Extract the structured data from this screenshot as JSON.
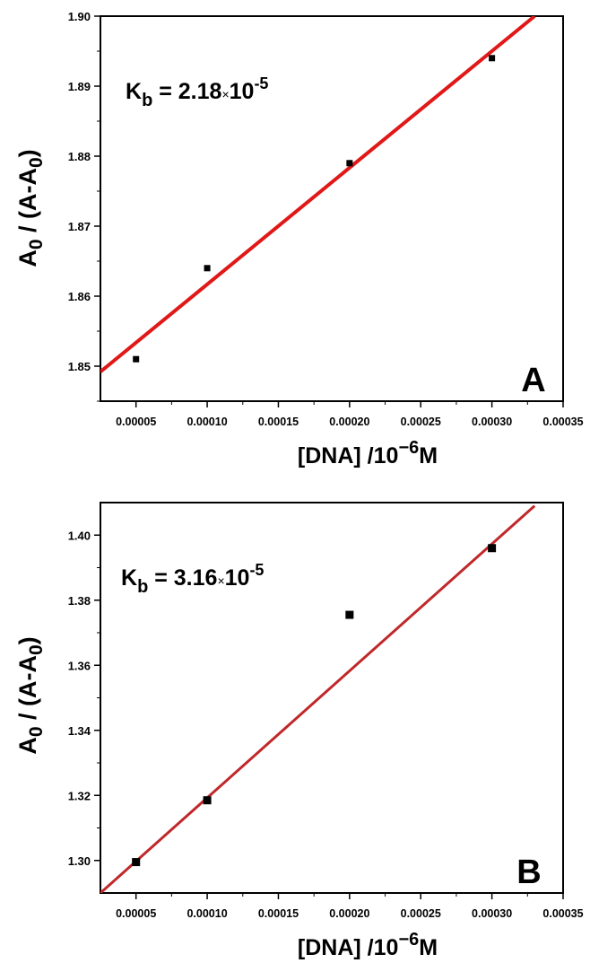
{
  "chart_data": [
    {
      "type": "scatter",
      "panel_label": "A",
      "xlabel": {
        "main": "[DNA] /10",
        "sup": "−6",
        "unit": "M"
      },
      "ylabel": {
        "a": "A",
        "a_sub": "0",
        "mid": " / (A-A",
        "mid_sub": "0",
        "end": ")"
      },
      "annotation": {
        "k": "K",
        "k_sub": "b",
        "eq": " = 2.18",
        "times": "×",
        "base": "10",
        "exp": "-5"
      },
      "xlim": [
        2.5e-05,
        0.00035
      ],
      "ylim": [
        1.845,
        1.9
      ],
      "x_ticks": [
        5e-05,
        0.0001,
        0.00015,
        0.0002,
        0.00025,
        0.0003,
        0.00035
      ],
      "x_tick_labels": [
        "0.00005",
        "0.00010",
        "0.00015",
        "0.00020",
        "0.00025",
        "0.00030",
        "0.00035"
      ],
      "y_ticks": [
        1.85,
        1.86,
        1.87,
        1.88,
        1.89,
        1.9
      ],
      "y_tick_labels": [
        "1.85",
        "1.86",
        "1.87",
        "1.88",
        "1.89",
        "1.90"
      ],
      "series": [
        {
          "points": [
            {
              "x": 5e-05,
              "y": 1.851
            },
            {
              "x": 0.0001,
              "y": 1.864
            },
            {
              "x": 0.0002,
              "y": 1.879
            },
            {
              "x": 0.0003,
              "y": 1.894
            }
          ]
        }
      ],
      "fit_line": {
        "from": {
          "x": 2.5e-05,
          "y": 1.8492
        },
        "to": {
          "x": 0.00033,
          "y": 1.9
        }
      },
      "colors": {
        "fit": "#e01818",
        "points": "#000000"
      }
    },
    {
      "type": "scatter",
      "panel_label": "B",
      "xlabel": {
        "main": "[DNA] /10",
        "sup": "−6",
        "unit": "M"
      },
      "ylabel": {
        "a": "A",
        "a_sub": "0",
        "mid": " / (A-A",
        "mid_sub": "0",
        "end": ")"
      },
      "annotation": {
        "k": "K",
        "k_sub": "b",
        "eq": " = 3.16",
        "times": "×",
        "base": "10",
        "exp": "-5"
      },
      "xlim": [
        2.5e-05,
        0.00035
      ],
      "ylim": [
        1.29,
        1.41
      ],
      "x_ticks": [
        5e-05,
        0.0001,
        0.00015,
        0.0002,
        0.00025,
        0.0003,
        0.00035
      ],
      "x_tick_labels": [
        "0.00005",
        "0.00010",
        "0.00015",
        "0.00020",
        "0.00025",
        "0.00030",
        "0.00035"
      ],
      "y_ticks": [
        1.3,
        1.32,
        1.34,
        1.36,
        1.38,
        1.4
      ],
      "y_tick_labels": [
        "1.30",
        "1.32",
        "1.34",
        "1.36",
        "1.38",
        "1.40"
      ],
      "series": [
        {
          "points": [
            {
              "x": 5e-05,
              "y": 1.2995
            },
            {
              "x": 0.0001,
              "y": 1.3185
            },
            {
              "x": 0.0002,
              "y": 1.3755
            },
            {
              "x": 0.0003,
              "y": 1.396
            }
          ]
        }
      ],
      "fit_line": {
        "from": {
          "x": 2.5e-05,
          "y": 1.29
        },
        "to": {
          "x": 0.00033,
          "y": 1.409
        }
      },
      "colors": {
        "fit": "#c0282a",
        "points": "#000000"
      }
    }
  ]
}
